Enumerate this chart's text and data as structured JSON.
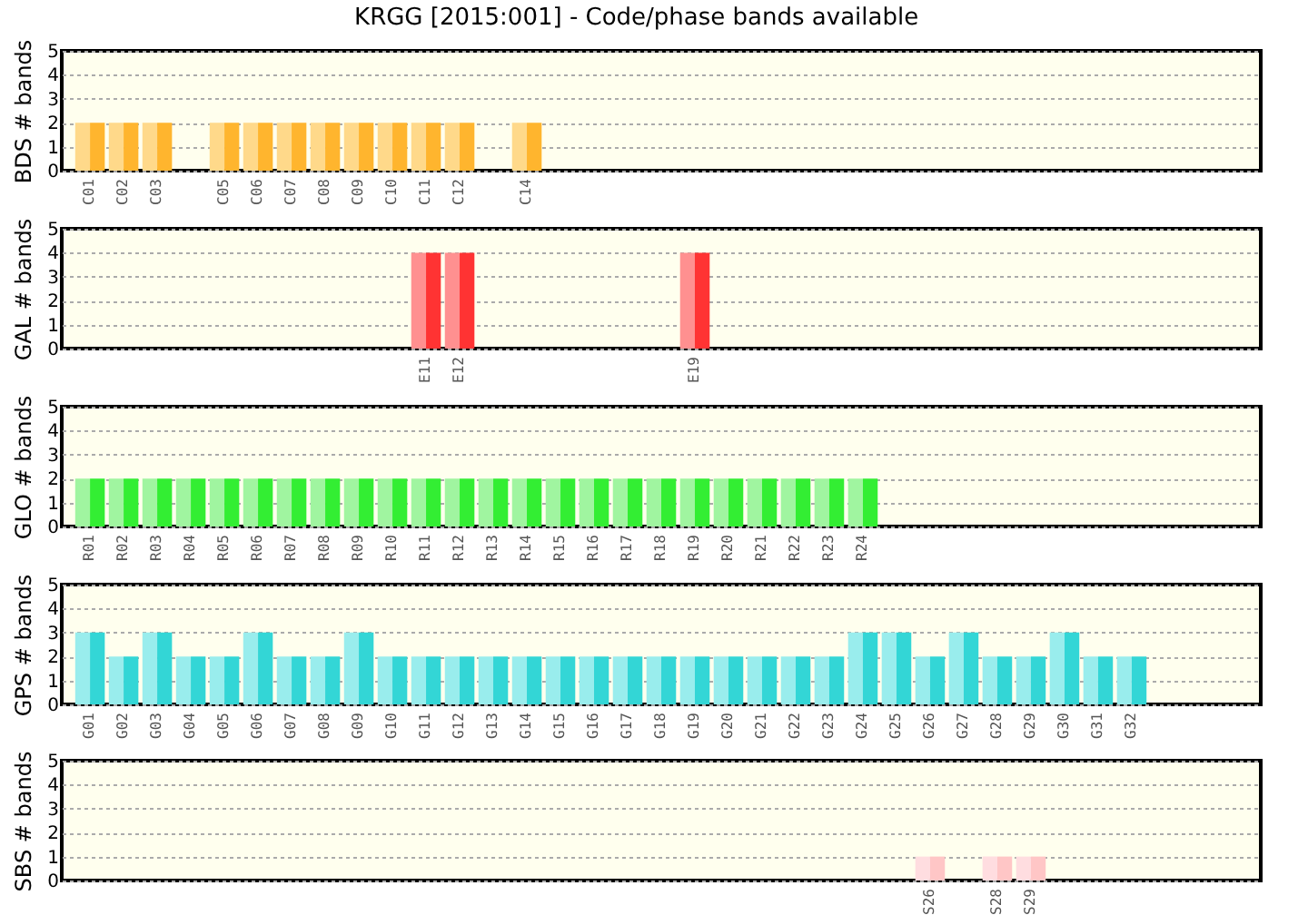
{
  "chart_data": [
    {
      "type": "bar",
      "title": "KRGG [2015:001] - Code/phase bands available",
      "ylabel": "BDS # bands",
      "ylim": [
        0,
        5
      ],
      "yticks": [
        0,
        1,
        2,
        3,
        4,
        5
      ],
      "grid": "y",
      "categories": [
        "C01",
        "C02",
        "C03",
        null,
        "C05",
        "C06",
        "C07",
        "C08",
        "C09",
        "C10",
        "C11",
        "C12",
        null,
        "C14",
        null,
        null,
        null,
        null,
        null,
        null,
        null,
        null,
        null,
        null,
        null,
        null,
        null,
        null,
        null,
        null,
        null,
        null,
        null,
        null,
        null
      ],
      "series": [
        {
          "color": "#ffd98a",
          "values": [
            2,
            2,
            2,
            null,
            2,
            2,
            2,
            2,
            2,
            2,
            2,
            2,
            null,
            2,
            null,
            null,
            null,
            null,
            null,
            null,
            null,
            null,
            null,
            null,
            null,
            null,
            null,
            null,
            null,
            null,
            null,
            null,
            null,
            null,
            null
          ]
        },
        {
          "color": "#ffb52e",
          "values": [
            2,
            2,
            2,
            null,
            2,
            2,
            2,
            2,
            2,
            2,
            2,
            2,
            null,
            2,
            null,
            null,
            null,
            null,
            null,
            null,
            null,
            null,
            null,
            null,
            null,
            null,
            null,
            null,
            null,
            null,
            null,
            null,
            null,
            null,
            null
          ]
        }
      ]
    },
    {
      "type": "bar",
      "ylabel": "GAL # bands",
      "ylim": [
        0,
        5
      ],
      "yticks": [
        0,
        1,
        2,
        3,
        4,
        5
      ],
      "grid": "y",
      "categories": [
        null,
        null,
        null,
        null,
        null,
        null,
        null,
        null,
        null,
        null,
        "E11",
        "E12",
        null,
        null,
        null,
        null,
        null,
        null,
        "E19",
        null,
        null,
        null,
        null,
        null,
        null,
        null,
        null,
        null,
        null,
        null,
        null,
        null,
        null,
        null,
        null
      ],
      "series": [
        {
          "color": "#ff9090",
          "values": [
            null,
            null,
            null,
            null,
            null,
            null,
            null,
            null,
            null,
            null,
            4,
            4,
            null,
            null,
            null,
            null,
            null,
            null,
            4,
            null,
            null,
            null,
            null,
            null,
            null,
            null,
            null,
            null,
            null,
            null,
            null,
            null,
            null,
            null,
            null
          ]
        },
        {
          "color": "#ff3333",
          "values": [
            null,
            null,
            null,
            null,
            null,
            null,
            null,
            null,
            null,
            null,
            4,
            4,
            null,
            null,
            null,
            null,
            null,
            null,
            4,
            null,
            null,
            null,
            null,
            null,
            null,
            null,
            null,
            null,
            null,
            null,
            null,
            null,
            null,
            null,
            null
          ]
        }
      ]
    },
    {
      "type": "bar",
      "ylabel": "GLO # bands",
      "ylim": [
        0,
        5
      ],
      "yticks": [
        0,
        1,
        2,
        3,
        4,
        5
      ],
      "grid": "y",
      "categories": [
        "R01",
        "R02",
        "R03",
        "R04",
        "R05",
        "R06",
        "R07",
        "R08",
        "R09",
        "R10",
        "R11",
        "R12",
        "R13",
        "R14",
        "R15",
        "R16",
        "R17",
        "R18",
        "R19",
        "R20",
        "R21",
        "R22",
        "R23",
        "R24",
        null,
        null,
        null,
        null,
        null,
        null,
        null,
        null,
        null,
        null,
        null
      ],
      "series": [
        {
          "color": "#a0f5a0",
          "values": [
            2,
            2,
            2,
            2,
            2,
            2,
            2,
            2,
            2,
            2,
            2,
            2,
            2,
            2,
            2,
            2,
            2,
            2,
            2,
            2,
            2,
            2,
            2,
            2,
            null,
            null,
            null,
            null,
            null,
            null,
            null,
            null,
            null,
            null,
            null
          ]
        },
        {
          "color": "#33ee33",
          "values": [
            2,
            2,
            2,
            2,
            2,
            2,
            2,
            2,
            2,
            2,
            2,
            2,
            2,
            2,
            2,
            2,
            2,
            2,
            2,
            2,
            2,
            2,
            2,
            2,
            null,
            null,
            null,
            null,
            null,
            null,
            null,
            null,
            null,
            null,
            null
          ]
        }
      ]
    },
    {
      "type": "bar",
      "ylabel": "GPS # bands",
      "ylim": [
        0,
        5
      ],
      "yticks": [
        0,
        1,
        2,
        3,
        4,
        5
      ],
      "grid": "y",
      "categories": [
        "G01",
        "G02",
        "G03",
        "G04",
        "G05",
        "G06",
        "G07",
        "G08",
        "G09",
        "G10",
        "G11",
        "G12",
        "G13",
        "G14",
        "G15",
        "G16",
        "G17",
        "G18",
        "G19",
        "G20",
        "G21",
        "G22",
        "G23",
        "G24",
        "G25",
        "G26",
        "G27",
        "G28",
        "G29",
        "G30",
        "G31",
        "G32",
        null,
        null,
        null
      ],
      "series": [
        {
          "color": "#99eded",
          "values": [
            3,
            2,
            3,
            2,
            2,
            3,
            2,
            2,
            3,
            2,
            2,
            2,
            2,
            2,
            2,
            2,
            2,
            2,
            2,
            2,
            2,
            2,
            2,
            3,
            3,
            2,
            3,
            2,
            2,
            3,
            2,
            2,
            null,
            null,
            null
          ]
        },
        {
          "color": "#33d6d6",
          "values": [
            3,
            2,
            3,
            2,
            2,
            3,
            2,
            2,
            3,
            2,
            2,
            2,
            2,
            2,
            2,
            2,
            2,
            2,
            2,
            2,
            2,
            2,
            2,
            3,
            3,
            2,
            3,
            2,
            2,
            3,
            2,
            2,
            null,
            null,
            null
          ]
        }
      ]
    },
    {
      "type": "bar",
      "ylabel": "SBS # bands",
      "ylim": [
        0,
        5
      ],
      "yticks": [
        0,
        1,
        2,
        3,
        4,
        5
      ],
      "grid": "y",
      "categories": [
        null,
        null,
        null,
        null,
        null,
        null,
        null,
        null,
        null,
        null,
        null,
        null,
        null,
        null,
        null,
        null,
        null,
        null,
        null,
        null,
        null,
        null,
        null,
        null,
        null,
        "S26",
        null,
        "S28",
        "S29",
        null,
        null,
        null,
        null,
        null,
        null
      ],
      "series": [
        {
          "color": "#ffdde0",
          "values": [
            null,
            null,
            null,
            null,
            null,
            null,
            null,
            null,
            null,
            null,
            null,
            null,
            null,
            null,
            null,
            null,
            null,
            null,
            null,
            null,
            null,
            null,
            null,
            null,
            null,
            1,
            null,
            1,
            1,
            null,
            null,
            null,
            null,
            null,
            null
          ]
        },
        {
          "color": "#ffc6c6",
          "values": [
            null,
            null,
            null,
            null,
            null,
            null,
            null,
            null,
            null,
            null,
            null,
            null,
            null,
            null,
            null,
            null,
            null,
            null,
            null,
            null,
            null,
            null,
            null,
            null,
            null,
            1,
            null,
            1,
            1,
            null,
            null,
            null,
            null,
            null,
            null
          ]
        }
      ]
    }
  ]
}
